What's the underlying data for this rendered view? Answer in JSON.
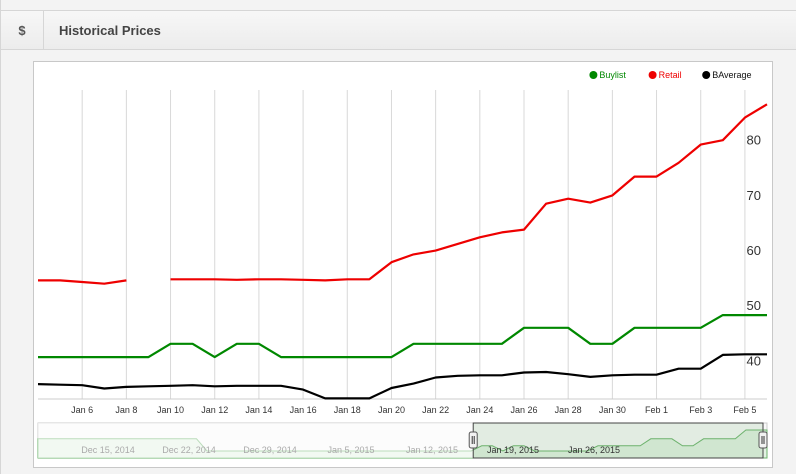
{
  "header": {
    "icon": "$",
    "title": "Historical Prices"
  },
  "legend": [
    {
      "label": "Buylist",
      "color": "#008800"
    },
    {
      "label": "Retail",
      "color": "#ee0000"
    },
    {
      "label": "BAverage",
      "color": "#000000"
    }
  ],
  "chart_data": {
    "type": "line",
    "ylim": [
      33,
      89
    ],
    "yticks": [
      40,
      50,
      60,
      70,
      80
    ],
    "x_labels": [
      "Jan 6",
      "Jan 8",
      "Jan 10",
      "Jan 12",
      "Jan 14",
      "Jan 16",
      "Jan 18",
      "Jan 20",
      "Jan 22",
      "Jan 24",
      "Jan 26",
      "Jan 28",
      "Jan 30",
      "Feb 1",
      "Feb 3",
      "Feb 5"
    ],
    "x": [
      "Jan 4",
      "Jan 5",
      "Jan 6",
      "Jan 7",
      "Jan 8",
      "Jan 9",
      "Jan 10",
      "Jan 11",
      "Jan 12",
      "Jan 13",
      "Jan 14",
      "Jan 15",
      "Jan 16",
      "Jan 17",
      "Jan 18",
      "Jan 19",
      "Jan 20",
      "Jan 21",
      "Jan 22",
      "Jan 23",
      "Jan 24",
      "Jan 25",
      "Jan 26",
      "Jan 27",
      "Jan 28",
      "Jan 29",
      "Jan 30",
      "Jan 31",
      "Feb 1",
      "Feb 2",
      "Feb 3",
      "Feb 4",
      "Feb 5",
      "Feb 6"
    ],
    "series": [
      {
        "name": "Retail",
        "color": "#ee0000",
        "values": [
          54.5,
          54.5,
          54.2,
          53.9,
          54.5,
          null,
          54.7,
          54.7,
          54.7,
          54.6,
          54.7,
          54.7,
          54.6,
          54.5,
          54.7,
          54.7,
          57.8,
          59.2,
          59.9,
          61.1,
          62.3,
          63.2,
          63.7,
          68.4,
          69.3,
          68.6,
          69.9,
          73.3,
          73.3,
          75.8,
          79.1,
          79.9,
          84.0,
          86.4
        ]
      },
      {
        "name": "Buylist",
        "color": "#008800",
        "values": [
          40.6,
          40.6,
          40.6,
          40.6,
          40.6,
          40.6,
          43.0,
          43.0,
          40.6,
          43.0,
          43.0,
          40.6,
          40.6,
          40.6,
          40.6,
          40.6,
          40.6,
          43.0,
          43.0,
          43.0,
          43.0,
          43.0,
          45.9,
          45.9,
          45.9,
          43.0,
          43.0,
          45.9,
          45.9,
          45.9,
          45.9,
          48.2,
          48.2,
          48.2
        ]
      },
      {
        "name": "BAverage",
        "color": "#000000",
        "values": [
          35.7,
          35.6,
          35.5,
          34.9,
          35.2,
          35.3,
          35.4,
          35.5,
          35.3,
          35.4,
          35.4,
          35.4,
          34.7,
          33.1,
          33.1,
          33.1,
          35.0,
          35.8,
          36.9,
          37.2,
          37.3,
          37.3,
          37.8,
          37.9,
          37.5,
          37.0,
          37.3,
          37.4,
          37.4,
          38.5,
          38.5,
          41.0,
          41.1,
          41.1
        ]
      }
    ]
  },
  "navigator": {
    "labels": [
      "Dec 15, 2014",
      "Dec 22, 2014",
      "Dec 29, 2014",
      "Jan 5, 2015",
      "Jan 12, 2015",
      "Jan 19, 2015",
      "Jan 26, 2015"
    ],
    "profile": [
      0.55,
      0.55,
      0.55,
      0.55,
      0.55,
      0.55,
      0.55,
      0.55,
      0.55,
      0.55,
      0.55,
      0.55,
      0.55,
      0.55,
      0.55,
      0.55,
      0.2,
      0.2,
      0.2,
      0.2,
      0.2,
      0.2,
      0.2,
      0.2,
      0.2,
      0.2,
      0.2,
      0.2,
      0.2,
      0.2,
      0.2,
      0.2,
      0.2,
      0.2,
      0.2,
      0.2,
      0.2,
      0.2,
      0.2,
      0.2,
      0.2,
      0.2,
      0.35,
      0.35,
      0.2,
      0.35,
      0.35,
      0.2,
      0.2,
      0.2,
      0.2,
      0.2,
      0.2,
      0.35,
      0.35,
      0.35,
      0.35,
      0.35,
      0.55,
      0.55,
      0.55,
      0.35,
      0.35,
      0.55,
      0.55,
      0.55,
      0.55,
      0.8,
      0.8,
      0.8
    ],
    "selected_start": 0.597,
    "selected_end": 1.0
  }
}
